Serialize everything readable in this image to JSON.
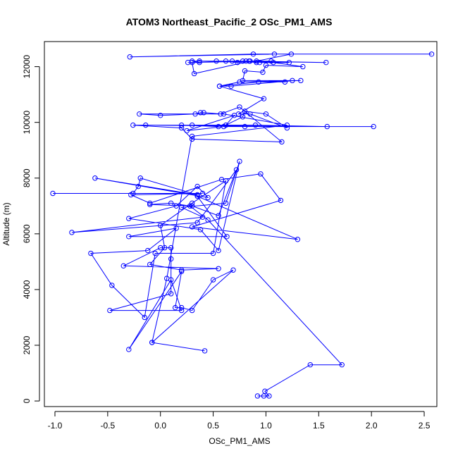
{
  "chart_data": {
    "type": "line",
    "title": "ATOM3 Northeast_Pacific_2 OSc_PM1_AMS",
    "xlabel": "OSc_PM1_AMS",
    "ylabel": "Altitude (m)",
    "xlim": [
      -1.1,
      2.62
    ],
    "ylim": [
      -200,
      12900
    ],
    "xticks": [
      -1.0,
      -0.5,
      0.0,
      0.5,
      1.0,
      1.5,
      2.0,
      2.5
    ],
    "xtick_labels": [
      "-1.0",
      "-0.5",
      "0.0",
      "0.5",
      "1.0",
      "1.5",
      "2.0",
      "2.5"
    ],
    "yticks": [
      0,
      2000,
      4000,
      6000,
      8000,
      10000,
      12000
    ],
    "ytick_labels": [
      "0",
      "2000",
      "4000",
      "6000",
      "8000",
      "10000",
      "12000"
    ],
    "color": "#0000ff",
    "marker": "open-circle",
    "series": [
      {
        "points": [
          [
            0.92,
            180
          ],
          [
            0.98,
            180
          ],
          [
            1.03,
            180
          ],
          [
            0.99,
            350
          ],
          [
            1.42,
            1300
          ],
          [
            1.72,
            1300
          ],
          [
            0.45,
            6500
          ],
          [
            0.28,
            7000
          ],
          [
            0.1,
            7100
          ],
          [
            -0.1,
            7050
          ],
          [
            0.3,
            7000
          ],
          [
            0.55,
            6650
          ],
          [
            0.72,
            8300
          ],
          [
            0.35,
            6400
          ],
          [
            -0.84,
            6050
          ],
          [
            0.4,
            6600
          ],
          [
            0.2,
            6950
          ],
          [
            0.62,
            7100
          ],
          [
            0.75,
            8600
          ],
          [
            0.55,
            5400
          ],
          [
            0.38,
            6150
          ],
          [
            -0.3,
            6550
          ],
          [
            0.15,
            7000
          ],
          [
            0.35,
            7700
          ],
          [
            0.45,
            7300
          ],
          [
            -0.62,
            8000
          ],
          [
            0.35,
            7400
          ],
          [
            -0.19,
            8000
          ],
          [
            -0.21,
            7700
          ],
          [
            -0.26,
            7450
          ],
          [
            -1.02,
            7450
          ],
          [
            0.4,
            7450
          ],
          [
            -0.28,
            7400
          ],
          [
            -0.1,
            7100
          ],
          [
            0.58,
            7950
          ],
          [
            0.95,
            8150
          ],
          [
            1.14,
            7200
          ],
          [
            0.3,
            6250
          ],
          [
            1.3,
            5800
          ],
          [
            0.35,
            7350
          ],
          [
            0.63,
            5900
          ],
          [
            -0.3,
            5900
          ],
          [
            0.15,
            6200
          ],
          [
            -0.12,
            5400
          ],
          [
            -0.66,
            5300
          ],
          [
            -0.46,
            4150
          ],
          [
            -0.15,
            3000
          ],
          [
            -0.05,
            5300
          ],
          [
            0.5,
            5300
          ],
          [
            0.62,
            7900
          ],
          [
            0.3,
            7100
          ],
          [
            0.0,
            6300
          ],
          [
            0.04,
            5500
          ],
          [
            -0.1,
            4900
          ],
          [
            0.2,
            4700
          ],
          [
            0.55,
            4750
          ],
          [
            -0.35,
            4850
          ],
          [
            0.0,
            5500
          ],
          [
            0.1,
            5500
          ],
          [
            0.1,
            5100
          ],
          [
            0.1,
            3850
          ],
          [
            -0.48,
            3250
          ],
          [
            0.2,
            3250
          ],
          [
            0.1,
            4350
          ],
          [
            -0.3,
            1850
          ],
          [
            0.2,
            4650
          ],
          [
            0.14,
            3350
          ],
          [
            0.2,
            3350
          ],
          [
            0.3,
            3250
          ],
          [
            0.5,
            4350
          ],
          [
            0.69,
            4700
          ],
          [
            -0.08,
            2100
          ],
          [
            0.42,
            1800
          ],
          [
            -0.08,
            2100
          ],
          [
            0.06,
            4400
          ],
          [
            0.3,
            9500
          ],
          [
            1.2,
            9900
          ],
          [
            0.6,
            10300
          ],
          [
            -0.2,
            10300
          ],
          [
            0.0,
            10250
          ],
          [
            0.33,
            10300
          ],
          [
            0.38,
            10350
          ],
          [
            0.41,
            10350
          ],
          [
            0.57,
            10300
          ],
          [
            0.75,
            10550
          ],
          [
            1.15,
            9300
          ],
          [
            0.3,
            9400
          ],
          [
            0.2,
            9800
          ],
          [
            -0.26,
            9900
          ],
          [
            0.9,
            9900
          ],
          [
            1.58,
            9850
          ],
          [
            -0.14,
            9900
          ],
          [
            0.2,
            9900
          ],
          [
            0.55,
            9850
          ],
          [
            0.3,
            9900
          ],
          [
            0.8,
            9850
          ],
          [
            2.02,
            9850
          ],
          [
            0.6,
            9850
          ],
          [
            0.25,
            9700
          ],
          [
            0.7,
            10250
          ],
          [
            0.62,
            9900
          ],
          [
            0.78,
            10200
          ],
          [
            0.8,
            10400
          ],
          [
            1.0,
            10300
          ],
          [
            1.2,
            9800
          ],
          [
            0.85,
            10300
          ],
          [
            0.74,
            10300
          ],
          [
            0.98,
            10850
          ],
          [
            0.56,
            11300
          ],
          [
            0.93,
            11450
          ],
          [
            1.18,
            11450
          ],
          [
            1.25,
            11500
          ],
          [
            0.67,
            11300
          ],
          [
            0.56,
            11300
          ],
          [
            0.75,
            11450
          ],
          [
            1.33,
            11500
          ],
          [
            0.78,
            11500
          ],
          [
            0.8,
            11850
          ],
          [
            0.97,
            11800
          ],
          [
            1.0,
            12050
          ],
          [
            1.35,
            12000
          ],
          [
            1.07,
            12150
          ],
          [
            0.85,
            12200
          ],
          [
            0.32,
            11750
          ],
          [
            0.3,
            12150
          ],
          [
            0.78,
            12200
          ],
          [
            0.91,
            12150
          ],
          [
            0.81,
            12200
          ],
          [
            0.73,
            12150
          ],
          [
            0.62,
            12200
          ],
          [
            0.53,
            12200
          ],
          [
            0.84,
            12200
          ],
          [
            1.57,
            12150
          ],
          [
            0.68,
            12200
          ],
          [
            0.37,
            12200
          ],
          [
            1.22,
            12150
          ],
          [
            0.94,
            12150
          ],
          [
            1.05,
            12200
          ],
          [
            0.3,
            12200
          ],
          [
            0.37,
            12150
          ],
          [
            0.26,
            12150
          ],
          [
            0.91,
            12200
          ],
          [
            1.24,
            12450
          ],
          [
            0.88,
            12450
          ],
          [
            -0.29,
            12350
          ],
          [
            1.08,
            12450
          ],
          [
            2.57,
            12450
          ]
        ]
      }
    ]
  }
}
